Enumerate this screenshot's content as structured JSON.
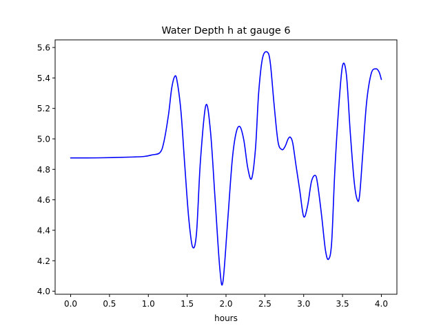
{
  "chart_data": {
    "type": "line",
    "title": "Water Depth h at gauge 6",
    "xlabel": "hours",
    "ylabel": "",
    "xlim": [
      -0.2,
      4.2
    ],
    "ylim": [
      3.98,
      5.65
    ],
    "xticks": [
      0.0,
      0.5,
      1.0,
      1.5,
      2.0,
      2.5,
      3.0,
      3.5,
      4.0
    ],
    "xtick_labels": [
      "0.0",
      "0.5",
      "1.0",
      "1.5",
      "2.0",
      "2.5",
      "3.0",
      "3.5",
      "4.0"
    ],
    "yticks": [
      4.0,
      4.2,
      4.4,
      4.6,
      4.8,
      5.0,
      5.2,
      5.4,
      5.6
    ],
    "ytick_labels": [
      "4.0",
      "4.2",
      "4.4",
      "4.6",
      "4.8",
      "5.0",
      "5.2",
      "5.4",
      "5.6"
    ],
    "grid": false,
    "series": [
      {
        "color": "#0000ff",
        "x": [
          0.0,
          0.4,
          0.8,
          0.95,
          1.05,
          1.15,
          1.2,
          1.26,
          1.3,
          1.34,
          1.37,
          1.42,
          1.47,
          1.52,
          1.57,
          1.62,
          1.67,
          1.74,
          1.8,
          1.86,
          1.92,
          1.96,
          2.02,
          2.08,
          2.13,
          2.18,
          2.23,
          2.28,
          2.33,
          2.38,
          2.42,
          2.47,
          2.53,
          2.57,
          2.62,
          2.67,
          2.72,
          2.76,
          2.8,
          2.83,
          2.86,
          2.9,
          2.95,
          3.0,
          3.05,
          3.1,
          3.15,
          3.18,
          3.23,
          3.28,
          3.32,
          3.36,
          3.4,
          3.45,
          3.5,
          3.55,
          3.6,
          3.65,
          3.69,
          3.72,
          3.76,
          3.81,
          3.87,
          3.93,
          3.97,
          4.0
        ],
        "y": [
          4.875,
          4.876,
          4.881,
          4.885,
          4.895,
          4.91,
          4.98,
          5.16,
          5.33,
          5.41,
          5.38,
          5.18,
          4.82,
          4.48,
          4.29,
          4.38,
          4.85,
          5.22,
          5.05,
          4.6,
          4.15,
          4.06,
          4.45,
          4.86,
          5.04,
          5.08,
          4.99,
          4.81,
          4.74,
          4.94,
          5.3,
          5.53,
          5.57,
          5.5,
          5.22,
          4.98,
          4.93,
          4.95,
          5.0,
          5.01,
          4.97,
          4.83,
          4.66,
          4.49,
          4.56,
          4.72,
          4.76,
          4.7,
          4.5,
          4.27,
          4.21,
          4.32,
          4.78,
          5.2,
          5.48,
          5.42,
          5.04,
          4.72,
          4.6,
          4.63,
          4.9,
          5.24,
          5.43,
          5.46,
          5.44,
          5.39
        ]
      }
    ]
  }
}
